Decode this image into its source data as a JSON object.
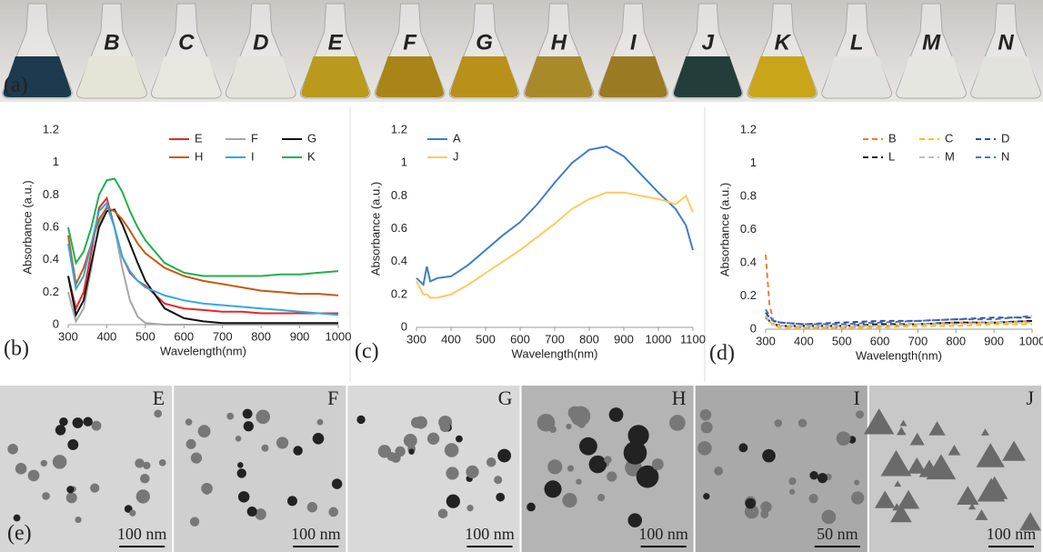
{
  "photo": {
    "label": "(a)",
    "flask_labels": [
      null,
      "B",
      "C",
      "D",
      "E",
      "F",
      "G",
      "H",
      "I",
      "J",
      "K",
      "L",
      "M",
      "N"
    ]
  },
  "chart_data": [
    {
      "type": "line",
      "label": "(b)",
      "xlabel": "Wavelength(nm)",
      "ylabel": "Absorbance (a.u.)",
      "x": [
        300,
        320,
        340,
        360,
        380,
        400,
        420,
        440,
        460,
        480,
        500,
        550,
        600,
        650,
        700,
        750,
        800,
        850,
        900,
        950,
        1000
      ],
      "xlim": [
        300,
        1000
      ],
      "xticks": [
        300,
        400,
        500,
        600,
        700,
        800,
        900,
        1000
      ],
      "ylim": [
        0,
        1.2
      ],
      "yticks": [
        0,
        0.2,
        0.4,
        0.6,
        0.8,
        1,
        1.2
      ],
      "grid": false,
      "dashed": false,
      "legend": "top-right",
      "legend_columns": 3,
      "series": [
        {
          "name": "E",
          "color": "#e8262b",
          "values": [
            0.3,
            0.1,
            0.2,
            0.45,
            0.72,
            0.78,
            0.6,
            0.42,
            0.32,
            0.27,
            0.24,
            0.13,
            0.1,
            0.09,
            0.08,
            0.08,
            0.07,
            0.07,
            0.07,
            0.07,
            0.07
          ]
        },
        {
          "name": "F",
          "color": "#a6a6a6",
          "values": [
            0.2,
            0.02,
            0.1,
            0.35,
            0.62,
            0.73,
            0.6,
            0.35,
            0.15,
            0.05,
            0.01,
            0,
            0,
            0,
            0,
            0,
            0,
            0,
            0,
            0,
            0
          ]
        },
        {
          "name": "G",
          "color": "#111111",
          "values": [
            0.3,
            0.06,
            0.15,
            0.38,
            0.6,
            0.7,
            0.71,
            0.62,
            0.5,
            0.38,
            0.27,
            0.1,
            0.04,
            0.02,
            0.01,
            0.01,
            0.01,
            0.01,
            0.01,
            0.01,
            0.01
          ]
        },
        {
          "name": "H",
          "color": "#c55a11",
          "values": [
            0.55,
            0.25,
            0.35,
            0.5,
            0.65,
            0.72,
            0.7,
            0.65,
            0.58,
            0.5,
            0.44,
            0.35,
            0.3,
            0.27,
            0.25,
            0.23,
            0.21,
            0.2,
            0.19,
            0.19,
            0.18
          ]
        },
        {
          "name": "I",
          "color": "#2eaae1",
          "values": [
            0.5,
            0.22,
            0.3,
            0.5,
            0.7,
            0.75,
            0.6,
            0.42,
            0.33,
            0.27,
            0.23,
            0.18,
            0.15,
            0.13,
            0.12,
            0.11,
            0.1,
            0.09,
            0.08,
            0.07,
            0.06
          ]
        },
        {
          "name": "K",
          "color": "#1fb04c",
          "values": [
            0.6,
            0.38,
            0.45,
            0.6,
            0.8,
            0.89,
            0.9,
            0.82,
            0.7,
            0.6,
            0.52,
            0.38,
            0.32,
            0.3,
            0.3,
            0.3,
            0.3,
            0.31,
            0.31,
            0.32,
            0.33
          ]
        }
      ]
    },
    {
      "type": "line",
      "label": "(c)",
      "xlabel": "Wavelength(nm)",
      "ylabel": "Absorbance (a.u.)",
      "x": [
        300,
        320,
        330,
        340,
        360,
        400,
        450,
        500,
        550,
        600,
        650,
        700,
        750,
        800,
        850,
        900,
        950,
        1000,
        1050,
        1080,
        1100
      ],
      "xlim": [
        300,
        1100
      ],
      "xticks": [
        300,
        400,
        500,
        600,
        700,
        800,
        900,
        1000,
        1100
      ],
      "ylim": [
        0,
        1.2
      ],
      "yticks": [
        0,
        0.2,
        0.4,
        0.6,
        0.8,
        1,
        1.2
      ],
      "grid": false,
      "dashed": false,
      "legend": "top-left",
      "legend_columns": 1,
      "series": [
        {
          "name": "A",
          "color": "#3f7fbf",
          "values": [
            0.3,
            0.26,
            0.37,
            0.28,
            0.3,
            0.31,
            0.38,
            0.47,
            0.56,
            0.64,
            0.75,
            0.88,
            1.0,
            1.08,
            1.1,
            1.04,
            0.93,
            0.82,
            0.72,
            0.62,
            0.47
          ]
        },
        {
          "name": "J",
          "color": "#ffc95e",
          "values": [
            0.28,
            0.2,
            0.2,
            0.18,
            0.18,
            0.2,
            0.26,
            0.33,
            0.4,
            0.47,
            0.55,
            0.63,
            0.72,
            0.78,
            0.82,
            0.82,
            0.8,
            0.78,
            0.75,
            0.8,
            0.7
          ]
        }
      ]
    },
    {
      "type": "line",
      "label": "(d)",
      "xlabel": "Wavelength(nm)",
      "ylabel": "Absorbance (a.u.)",
      "x": [
        300,
        310,
        320,
        340,
        400,
        500,
        600,
        700,
        800,
        900,
        1000
      ],
      "xlim": [
        300,
        1000
      ],
      "xticks": [
        300,
        400,
        500,
        600,
        700,
        800,
        900,
        1000
      ],
      "ylim": [
        0,
        1.2
      ],
      "yticks": [
        0,
        0.2,
        0.4,
        0.6,
        0.8,
        1,
        1.2
      ],
      "grid": false,
      "dashed": true,
      "legend": "top-right",
      "legend_columns": 3,
      "series": [
        {
          "name": "B",
          "color": "#ed7d31",
          "values": [
            0.45,
            0.15,
            0.05,
            0.02,
            0.01,
            0.01,
            0.02,
            0.03,
            0.04,
            0.04,
            0.05
          ]
        },
        {
          "name": "C",
          "color": "#ffc000",
          "values": [
            0.1,
            0.05,
            0.02,
            0.01,
            0.01,
            0.01,
            0.01,
            0.02,
            0.02,
            0.03,
            0.03
          ]
        },
        {
          "name": "D",
          "color": "#2f4f9f",
          "values": [
            0.1,
            0.07,
            0.05,
            0.04,
            0.03,
            0.04,
            0.05,
            0.05,
            0.06,
            0.07,
            0.07
          ]
        },
        {
          "name": "L",
          "color": "#111111",
          "values": [
            0.07,
            0.05,
            0.03,
            0.02,
            0.02,
            0.02,
            0.03,
            0.03,
            0.04,
            0.04,
            0.05
          ]
        },
        {
          "name": "M",
          "color": "#bfbfbf",
          "values": [
            0.08,
            0.04,
            0.03,
            0.02,
            0.02,
            0.02,
            0.02,
            0.03,
            0.03,
            0.04,
            0.04
          ]
        },
        {
          "name": "N",
          "color": "#4472c4",
          "values": [
            0.12,
            0.08,
            0.05,
            0.04,
            0.03,
            0.03,
            0.04,
            0.05,
            0.06,
            0.06,
            0.08
          ]
        }
      ]
    }
  ],
  "tem": {
    "label": "(e)",
    "panels": [
      {
        "label": "E",
        "scale": "100 nm"
      },
      {
        "label": "F",
        "scale": "100 nm"
      },
      {
        "label": "G",
        "scale": "100 nm"
      },
      {
        "label": "H",
        "scale": "100 nm"
      },
      {
        "label": "I",
        "scale": "50 nm"
      },
      {
        "label": "J",
        "scale": "100 nm"
      }
    ]
  }
}
